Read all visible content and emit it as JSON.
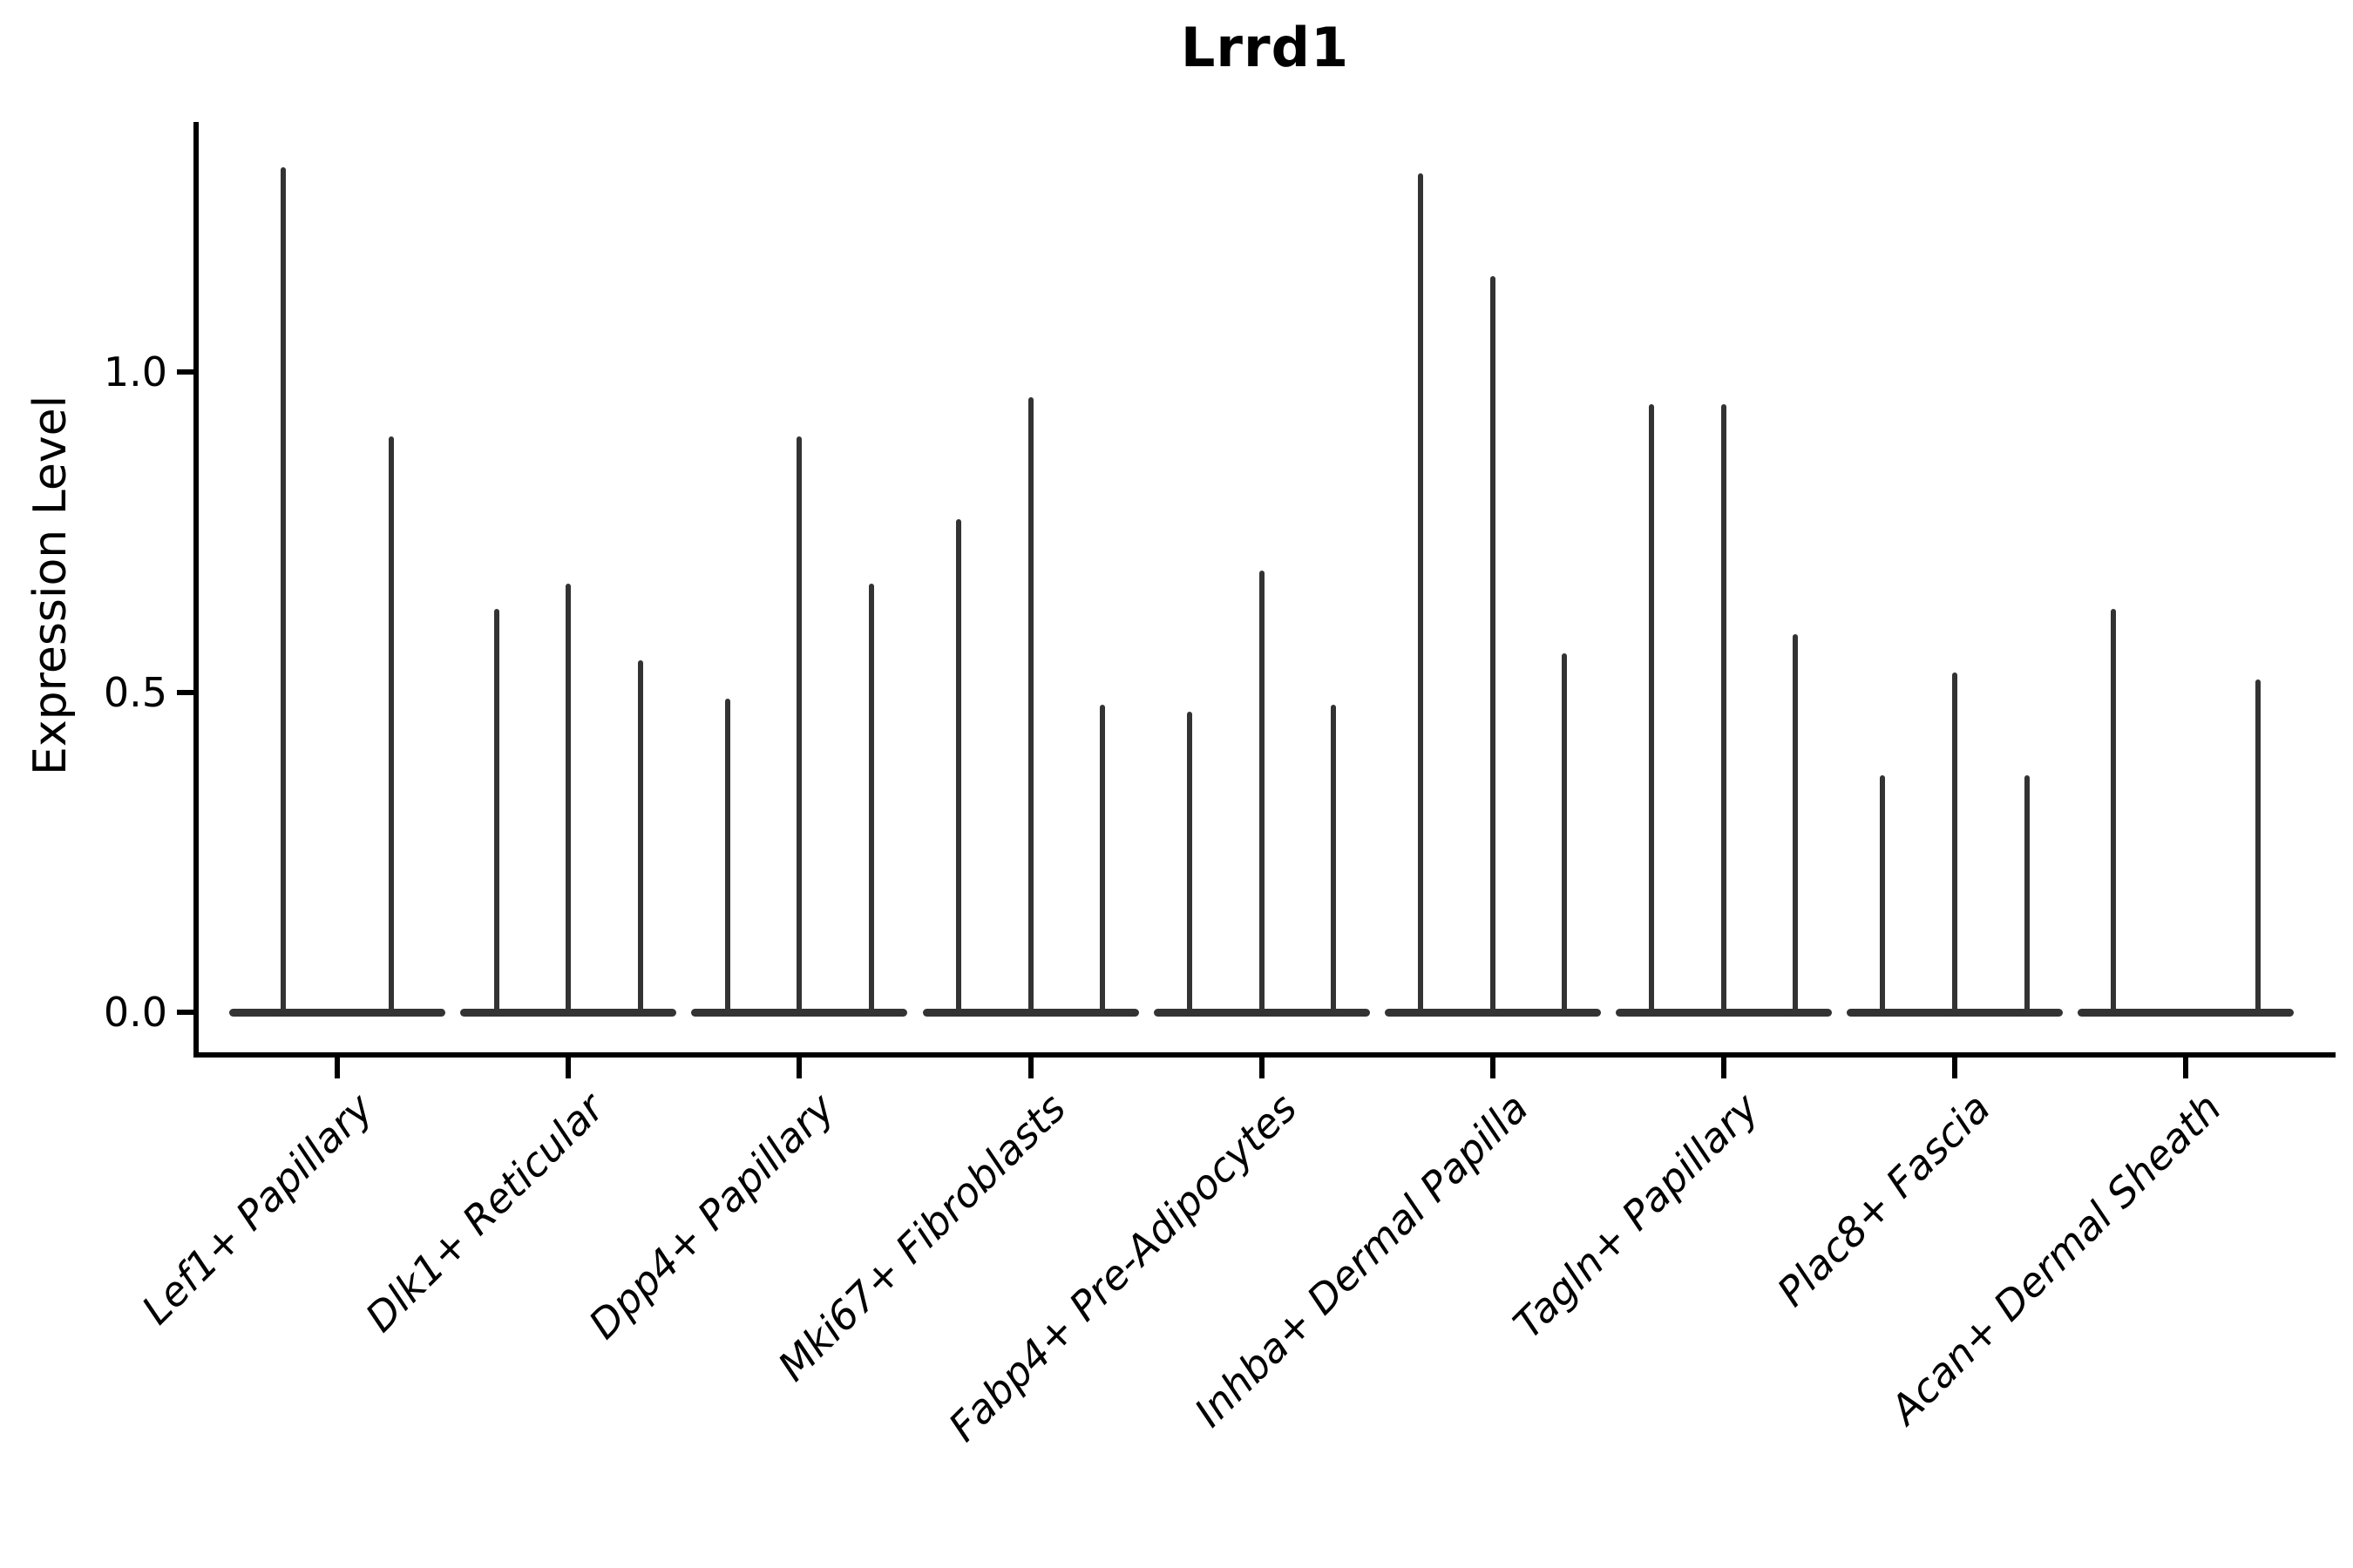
{
  "title": "Lrrd1",
  "y_axis": {
    "label": "Expression Level",
    "tick_labels": [
      "0.0",
      "0.5",
      "1.0"
    ]
  },
  "x_axis": {
    "tick_labels": [
      "Lef1+ Papillary",
      "Dlk1+ Reticular",
      "Dpp4+ Papillary",
      "Mki67+ Fibroblasts",
      "Fabp4+ Pre-Adipocytes",
      "Inhba+ Dermal Papilla",
      "Tagln+ Papillary",
      "Plac8+ Fascia",
      "Acan+ Dermal Sheath"
    ]
  },
  "colors": {
    "violin": "#333333",
    "axis": "#000000",
    "background": "#ffffff"
  },
  "chart_data": {
    "type": "violin",
    "title": "Lrrd1",
    "xlabel": "",
    "ylabel": "Expression Level",
    "yticks": [
      0.0,
      0.5,
      1.0
    ],
    "ylim": [
      -0.07,
      1.39
    ],
    "grid": false,
    "legend": null,
    "note": "Zero-inflated violins: each violin collapses to a wide flat disc at 0 with a thin spike reaching its maximum expression value; a value of 0 means a flat violin with no spike.",
    "categories": [
      "Lef1+ Papillary",
      "Dlk1+ Reticular",
      "Dpp4+ Papillary",
      "Mki67+ Fibroblasts",
      "Fabp4+ Pre-Adipocytes",
      "Inhba+ Dermal Papilla",
      "Tagln+ Papillary",
      "Plac8+ Fascia",
      "Acan+ Dermal Sheath"
    ],
    "groups": [
      {
        "category": "Lef1+ Papillary",
        "violin_max_values": [
          1.32,
          0.9
        ]
      },
      {
        "category": "Dlk1+ Reticular",
        "violin_max_values": [
          0.63,
          0.67,
          0.55
        ]
      },
      {
        "category": "Dpp4+ Papillary",
        "violin_max_values": [
          0.49,
          0.9,
          0.67
        ]
      },
      {
        "category": "Mki67+ Fibroblasts",
        "violin_max_values": [
          0.77,
          0.96,
          0.48
        ]
      },
      {
        "category": "Fabp4+ Pre-Adipocytes",
        "violin_max_values": [
          0.47,
          0.69,
          0.48
        ]
      },
      {
        "category": "Inhba+ Dermal Papilla",
        "violin_max_values": [
          1.31,
          1.15,
          0.56
        ]
      },
      {
        "category": "Tagln+ Papillary",
        "violin_max_values": [
          0.95,
          0.95,
          0.59
        ]
      },
      {
        "category": "Plac8+ Fascia",
        "violin_max_values": [
          0.37,
          0.53,
          0.37
        ]
      },
      {
        "category": "Acan+ Dermal Sheath",
        "violin_max_values": [
          0.63,
          0.0,
          0.52
        ]
      }
    ]
  }
}
